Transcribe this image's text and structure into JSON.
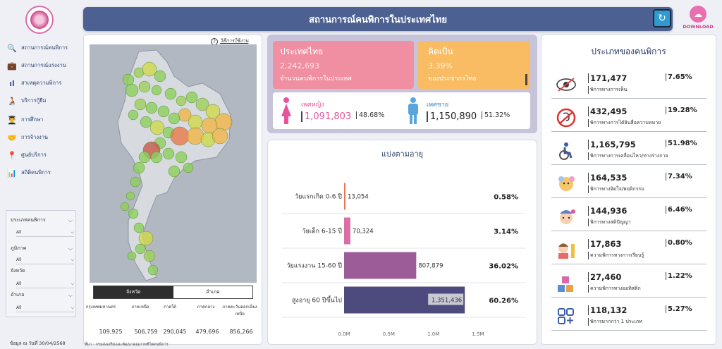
{
  "header": {
    "title": "สถานการณ์คนพิการในประเทศไทย",
    "download_label": "DOWNLOAD"
  },
  "sidebar": {
    "items": [
      {
        "label": "สถานการณ์คนพิการ",
        "icon": "search-chart-icon"
      },
      {
        "label": "สถานการณ์แรงงาน",
        "icon": "briefcase-icon"
      },
      {
        "label": "สาเหตุความพิการ",
        "icon": "bar-chart-icon"
      },
      {
        "label": "บริการกู้ยืม",
        "icon": "loan-icon"
      },
      {
        "label": "การศึกษา",
        "icon": "education-icon"
      },
      {
        "label": "การจ้างงาน",
        "icon": "handshake-icon"
      },
      {
        "label": "ศูนย์บริการ",
        "icon": "location-pin-icon"
      },
      {
        "label": "สถิติคนพิการ",
        "icon": "statistics-icon"
      }
    ],
    "filters": [
      {
        "label": "ประเภทคนพิการ",
        "value": "All"
      },
      {
        "label": "ภูมิภาค",
        "value": "All"
      },
      {
        "label": "จังหวัด",
        "value": "All"
      },
      {
        "label": "อำเภอ",
        "value": "All"
      }
    ],
    "updated": "ข้อมูล ณ วันที่   30/04/2568"
  },
  "map_panel": {
    "help_text": "วิธีการใช้งาน",
    "tabs": [
      "จังหวัด",
      "อำเภอ"
    ],
    "regions": [
      {
        "label": "กรุงเทพมหานคร",
        "value": "109,925"
      },
      {
        "label": "ภาคเหนือ",
        "value": "506,759"
      },
      {
        "label": "ภาคใต้",
        "value": "290,045"
      },
      {
        "label": "ภาคกลาง",
        "value": "479,696"
      },
      {
        "label": "ภาคตะวันออกเฉียงเหนือ",
        "value": "856,266"
      }
    ],
    "source": "ที่มา : กรมส่งเสริมและพัฒนาคุณภาพชีวิตคนพิการ"
  },
  "summary": {
    "country_title": "ประเทศไทย",
    "country_value": "2,242,693",
    "country_sub": "จำนวนคนพิการในประเทศ",
    "pct_title": "คิดเป็น",
    "pct_value": "3.39%",
    "pct_sub": "ของประชากรไทย",
    "female_label": "เพศหญิง",
    "female_value": "1,091,803",
    "female_pct": "48.68%",
    "male_label": "เพศชาย",
    "male_value": "1,150,890",
    "male_pct": "51.32%"
  },
  "chart_data": {
    "type": "bar",
    "title": "แบ่งตามอายุ",
    "orientation": "horizontal",
    "categories": [
      "วัยแรกเกิด 0-6 ปี",
      "วัยเด็ก 6-15 ปี",
      "วัยแรงงาน 15-60 ปี",
      "สูงอายุ 60 ปีขึ้นไป"
    ],
    "values": [
      13054,
      70324,
      807879,
      1351436
    ],
    "value_labels": [
      "13,054",
      "70,324",
      "807,879",
      "1,351,436"
    ],
    "percent_labels": [
      "0.58%",
      "3.14%",
      "36.02%",
      "60.26%"
    ],
    "bar_colors": [
      "#e8755a",
      "#d86fa5",
      "#9b5c98",
      "#4d4b7d"
    ],
    "xlim": [
      0,
      1500000
    ],
    "xticks": [
      0,
      500000,
      1000000,
      1500000
    ],
    "xtick_labels": [
      "0.0M",
      "0.5M",
      "1.0M",
      "1.5M"
    ],
    "grid": true
  },
  "types": {
    "title": "ประเภทของคนพิการ",
    "items": [
      {
        "value": "171,477",
        "pct": "7.65%",
        "label": "พิการทางการเห็น",
        "icon": "visual-impairment-icon"
      },
      {
        "value": "432,495",
        "pct": "19.28%",
        "label": "พิการทางการได้ยินสื่อความหมาย",
        "icon": "hearing-impairment-icon"
      },
      {
        "value": "1,165,795",
        "pct": "51.98%",
        "label": "พิการทางการเคลื่อนไหว/ทางร่างกาย",
        "icon": "wheelchair-icon"
      },
      {
        "value": "164,535",
        "pct": "7.34%",
        "label": "พิการทางจิตใจ/พฤติกรรม",
        "icon": "mental-health-icon"
      },
      {
        "value": "144,936",
        "pct": "6.46%",
        "label": "พิการทางสติปัญญา",
        "icon": "intellectual-icon"
      },
      {
        "value": "17,863",
        "pct": "0.80%",
        "label": "ความพิการทางการเรียนรู้",
        "icon": "learning-icon"
      },
      {
        "value": "27,460",
        "pct": "1.22%",
        "label": "ความพิการทางออทิสติก",
        "icon": "autism-blocks-icon"
      },
      {
        "value": "118,132",
        "pct": "5.27%",
        "label": "พิการมากกว่า 1 ประเภท",
        "icon": "multiple-types-icon"
      }
    ]
  }
}
